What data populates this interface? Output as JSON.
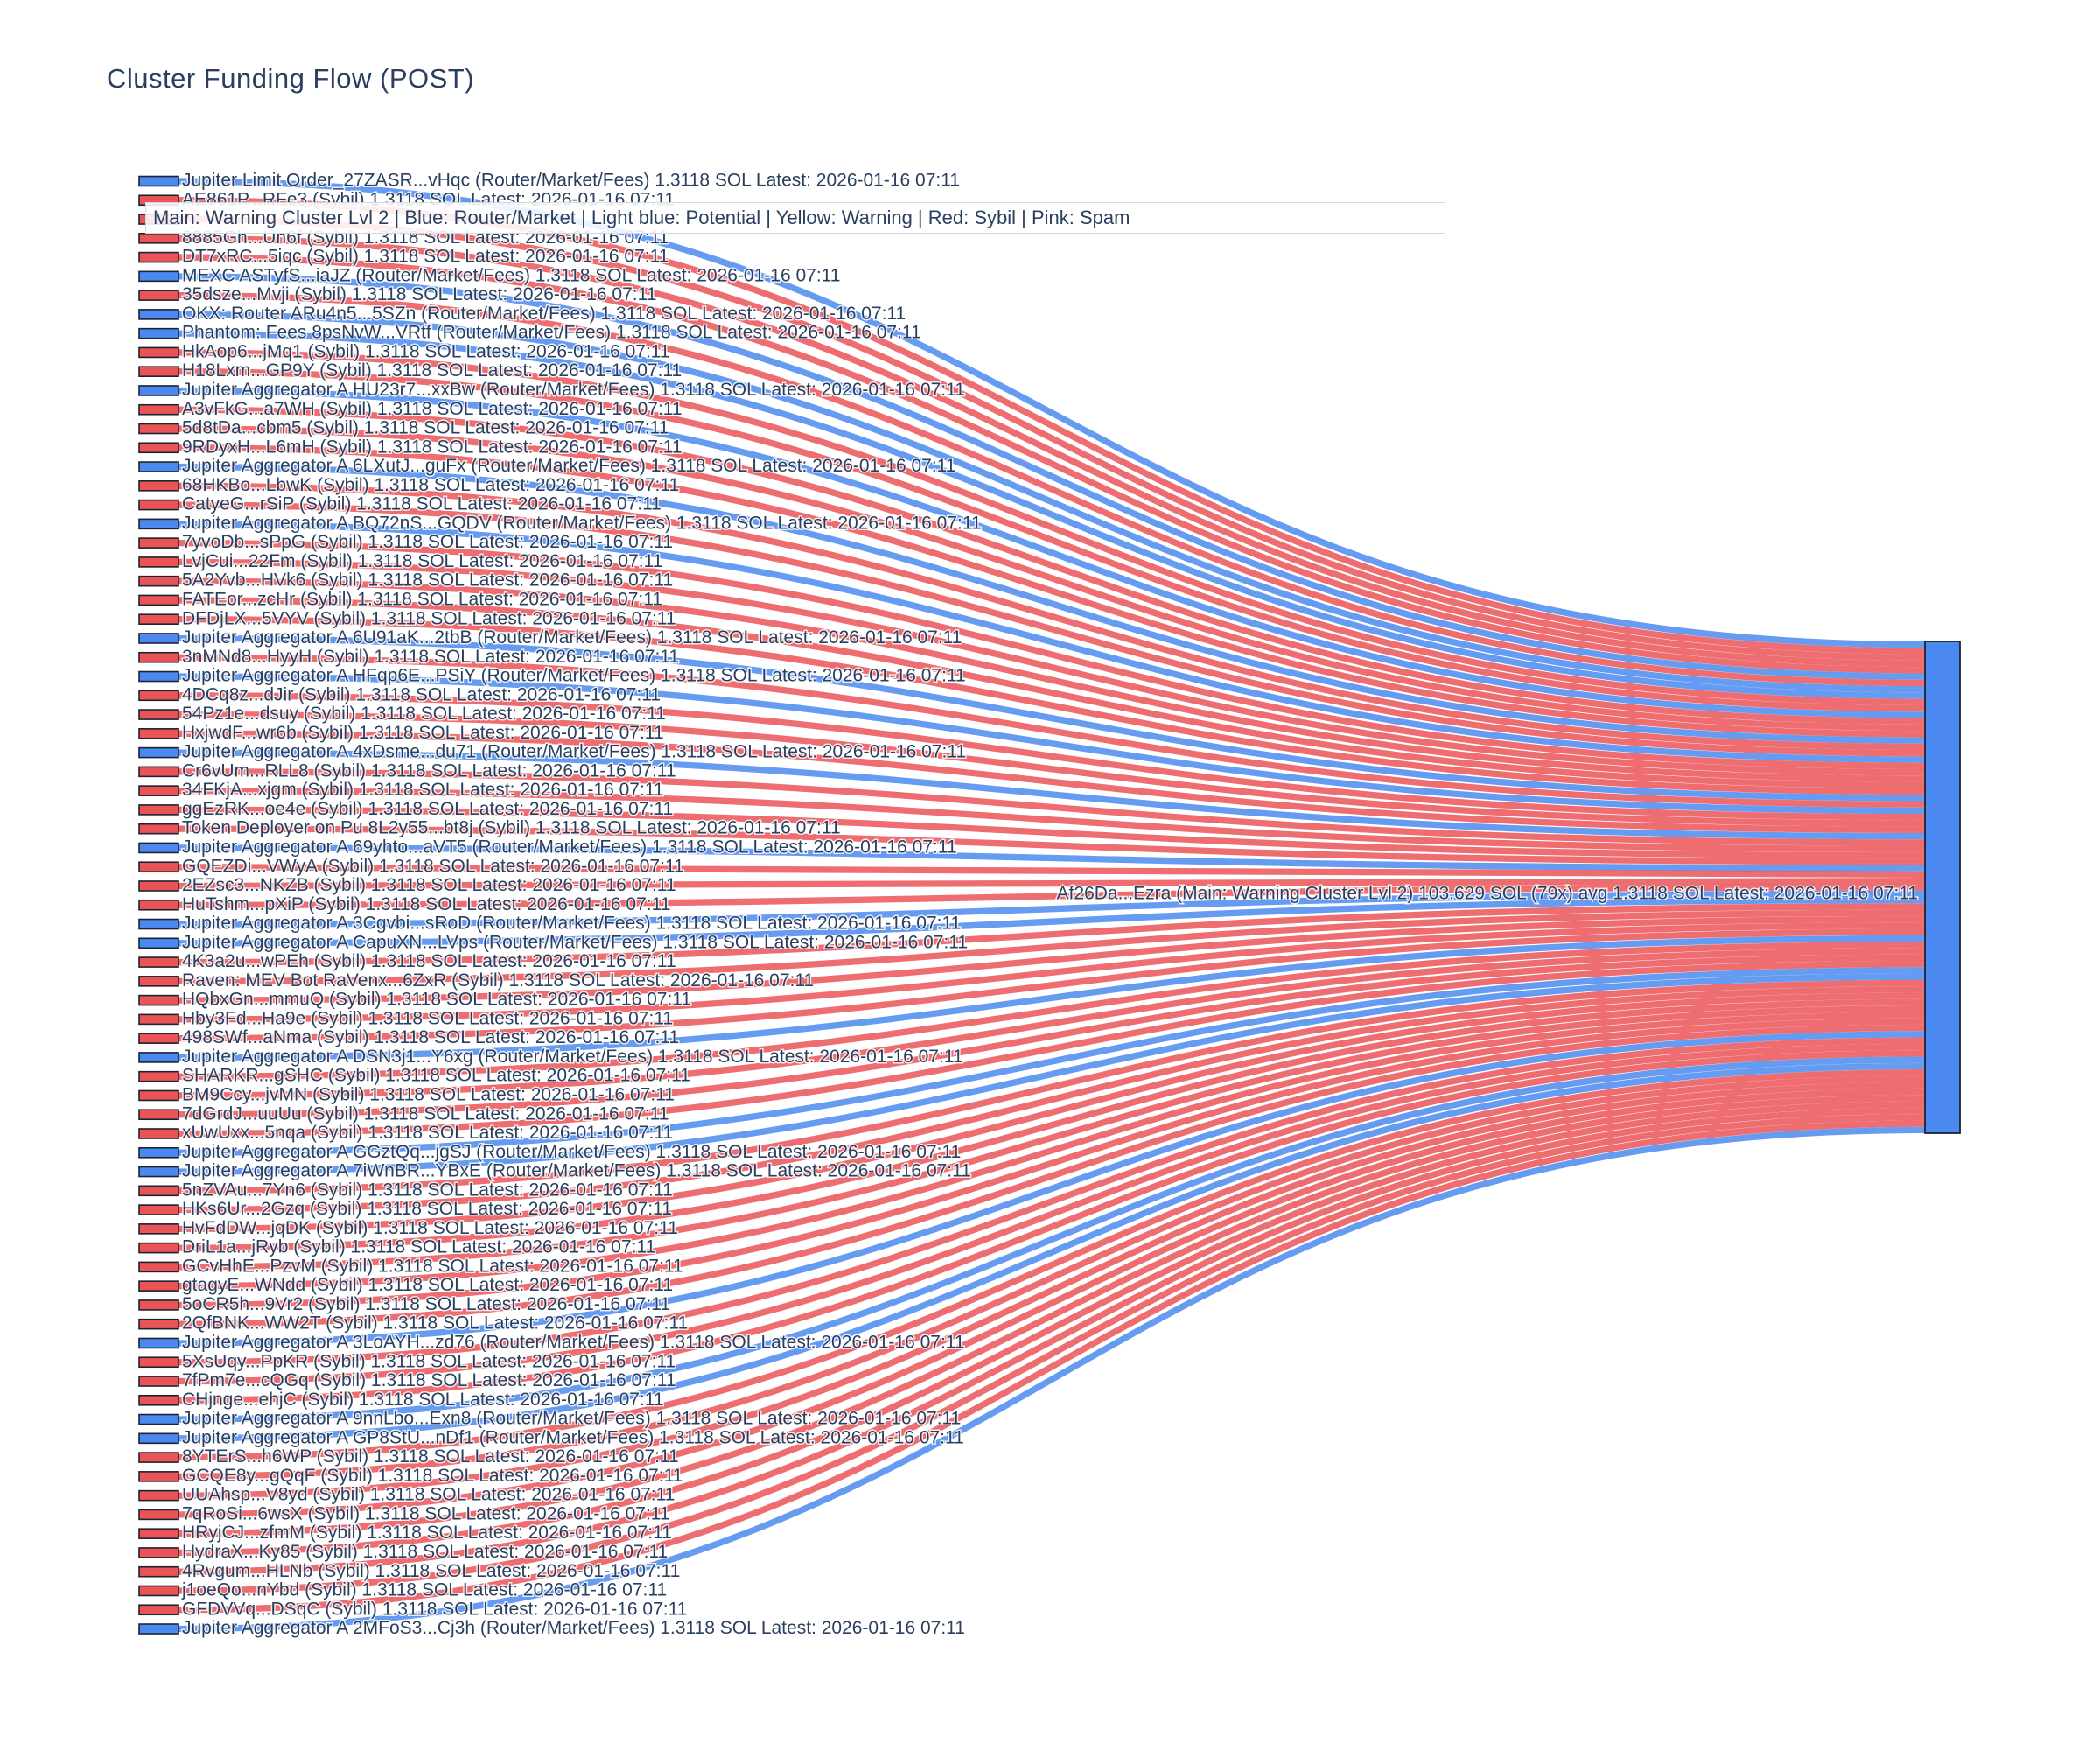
{
  "title": "Cluster Funding Flow (POST)",
  "legend": {
    "text": "Main: Warning Cluster Lvl 2  | Blue: Router/Market | Light blue: Potential | Yellow: Warning | Red: Sybil | Pink: Spam"
  },
  "colors": {
    "router_market_blue": "#4b89f0",
    "sybil_red": "#ea5457",
    "text_dark": "#2a3f5f",
    "node_border": "#1c2430"
  },
  "chart_data": {
    "type": "sankey",
    "title": "Cluster Funding Flow (POST)",
    "legend_note": "Main: Warning Cluster Lvl 2  | Blue: Router/Market | Light blue: Potential | Yellow: Warning | Red: Sybil | Pink: Spam",
    "flow_value_sol": 1.3118,
    "latest": "2026-01-16 07:11",
    "target_node": {
      "label": "Af26Da...Ezra (Main: Warning Cluster Lvl 2) 103.629 SOL (79x) avg 1.3118 SOL Latest: 2026-01-16 07:11",
      "total_sol": 103.629,
      "link_count": 79,
      "avg_sol": 1.3118
    },
    "sources": [
      {
        "label": "Jupiter Limit Order_27ZASR...vHqc (Router/Market/Fees) 1.3118 SOL Latest: 2026-01-16 07:11",
        "category": "router"
      },
      {
        "label": "AE861P...RFe3 (Sybil) 1.3118 SOL Latest: 2026-01-16 07:11",
        "category": "sybil"
      },
      {
        "label": "",
        "category": "sybil",
        "occluded": true
      },
      {
        "label": "8885Gh...Un6f (Sybil) 1.3118 SOL Latest: 2026-01-16 07:11",
        "category": "sybil"
      },
      {
        "label": "DT7xRC...5iqc (Sybil) 1.3118 SOL Latest: 2026-01-16 07:11",
        "category": "sybil"
      },
      {
        "label": "MEXC ASTyfS...iaJZ (Router/Market/Fees) 1.3118 SOL Latest: 2026-01-16 07:11",
        "category": "router"
      },
      {
        "label": "35dsze...Mvji (Sybil) 1.3118 SOL Latest: 2026-01-16 07:11",
        "category": "sybil"
      },
      {
        "label": "OKX: Router ARu4n5...5SZn (Router/Market/Fees) 1.3118 SOL Latest: 2026-01-16 07:11",
        "category": "router"
      },
      {
        "label": "Phantom: Fees 8psNvW...VRtf (Router/Market/Fees) 1.3118 SOL Latest: 2026-01-16 07:11",
        "category": "router"
      },
      {
        "label": "HkAop6...jMq1 (Sybil) 1.3118 SOL Latest: 2026-01-16 07:11",
        "category": "sybil"
      },
      {
        "label": "H18Lxm...GP9Y (Sybil) 1.3118 SOL Latest: 2026-01-16 07:11",
        "category": "sybil"
      },
      {
        "label": "Jupiter Aggregator A HU23r7...xxBw (Router/Market/Fees) 1.3118 SOL Latest: 2026-01-16 07:11",
        "category": "router"
      },
      {
        "label": "A3vFkG...a7WH (Sybil) 1.3118 SOL Latest: 2026-01-16 07:11",
        "category": "sybil"
      },
      {
        "label": "5d8tDa...cbm5 (Sybil) 1.3118 SOL Latest: 2026-01-16 07:11",
        "category": "sybil"
      },
      {
        "label": "9RDyxH...L6mH (Sybil) 1.3118 SOL Latest: 2026-01-16 07:11",
        "category": "sybil"
      },
      {
        "label": "Jupiter Aggregator A 6LXutJ...guFx (Router/Market/Fees) 1.3118 SOL Latest: 2026-01-16 07:11",
        "category": "router"
      },
      {
        "label": "68HKBo...LbwK (Sybil) 1.3118 SOL Latest: 2026-01-16 07:11",
        "category": "sybil"
      },
      {
        "label": "CatyeG...rSiP (Sybil) 1.3118 SOL Latest: 2026-01-16 07:11",
        "category": "sybil"
      },
      {
        "label": "Jupiter Aggregator A BQ72nS...GQDV (Router/Market/Fees) 1.3118 SOL Latest: 2026-01-16 07:11",
        "category": "router"
      },
      {
        "label": "7yvoDb...sPpG (Sybil) 1.3118 SOL Latest: 2026-01-16 07:11",
        "category": "sybil"
      },
      {
        "label": "LvjCui...22Fm (Sybil) 1.3118 SOL Latest: 2026-01-16 07:11",
        "category": "sybil"
      },
      {
        "label": "5A2Yvb...HVk6 (Sybil) 1.3118 SOL Latest: 2026-01-16 07:11",
        "category": "sybil"
      },
      {
        "label": "FATEor...zcHr (Sybil) 1.3118 SOL Latest: 2026-01-16 07:11",
        "category": "sybil"
      },
      {
        "label": "DFDjLX...5VYV (Sybil) 1.3118 SOL Latest: 2026-01-16 07:11",
        "category": "sybil"
      },
      {
        "label": "Jupiter Aggregator A 6U91aK...2tbB (Router/Market/Fees) 1.3118 SOL Latest: 2026-01-16 07:11",
        "category": "router"
      },
      {
        "label": "3nMNd8...HyyH (Sybil) 1.3118 SOL Latest: 2026-01-16 07:11",
        "category": "sybil"
      },
      {
        "label": "Jupiter Aggregator A HFqp6E...PSiY (Router/Market/Fees) 1.3118 SOL Latest: 2026-01-16 07:11",
        "category": "router"
      },
      {
        "label": "4DCq8z...dJir (Sybil) 1.3118 SOL Latest: 2026-01-16 07:11",
        "category": "sybil"
      },
      {
        "label": "54Pz1e...dsuy (Sybil) 1.3118 SOL Latest: 2026-01-16 07:11",
        "category": "sybil"
      },
      {
        "label": "HxjwdF...wr6b (Sybil) 1.3118 SOL Latest: 2026-01-16 07:11",
        "category": "sybil"
      },
      {
        "label": "Jupiter Aggregator A 4xDsme...du71 (Router/Market/Fees) 1.3118 SOL Latest: 2026-01-16 07:11",
        "category": "router"
      },
      {
        "label": "Cr6vUm...RLL8 (Sybil) 1.3118 SOL Latest: 2026-01-16 07:11",
        "category": "sybil"
      },
      {
        "label": "34FKjA...xjgm (Sybil) 1.3118 SOL Latest: 2026-01-16 07:11",
        "category": "sybil"
      },
      {
        "label": "ggEzRK...oe4e (Sybil) 1.3118 SOL Latest: 2026-01-16 07:11",
        "category": "sybil"
      },
      {
        "label": "Token Deployer on Pu 8L2y55...bt8j (Sybil) 1.3118 SOL Latest: 2026-01-16 07:11",
        "category": "sybil"
      },
      {
        "label": "Jupiter Aggregator A 69yhto...aVT5 (Router/Market/Fees) 1.3118 SOL Latest: 2026-01-16 07:11",
        "category": "router"
      },
      {
        "label": "GQEZDi...VWyA (Sybil) 1.3118 SOL Latest: 2026-01-16 07:11",
        "category": "sybil"
      },
      {
        "label": "2EZsc3...NKZB (Sybil) 1.3118 SOL Latest: 2026-01-16 07:11",
        "category": "sybil"
      },
      {
        "label": "HuTshm...pXiP (Sybil) 1.3118 SOL Latest: 2026-01-16 07:11",
        "category": "sybil"
      },
      {
        "label": "Jupiter Aggregator A 3Cgvbi...sRoD (Router/Market/Fees) 1.3118 SOL Latest: 2026-01-16 07:11",
        "category": "router"
      },
      {
        "label": "Jupiter Aggregator A CapuXN...LVps (Router/Market/Fees) 1.3118 SOL Latest: 2026-01-16 07:11",
        "category": "router"
      },
      {
        "label": "4K3a2u...wPEh (Sybil) 1.3118 SOL Latest: 2026-01-16 07:11",
        "category": "sybil"
      },
      {
        "label": "Raven: MEV Bot RaVenx...6ZxR (Sybil) 1.3118 SOL Latest: 2026-01-16 07:11",
        "category": "sybil"
      },
      {
        "label": "HQbxGn...mmuQ (Sybil) 1.3118 SOL Latest: 2026-01-16 07:11",
        "category": "sybil"
      },
      {
        "label": "Hby3Fd...Ha9e (Sybil) 1.3118 SOL Latest: 2026-01-16 07:11",
        "category": "sybil"
      },
      {
        "label": "498SWf...aNma (Sybil) 1.3118 SOL Latest: 2026-01-16 07:11",
        "category": "sybil"
      },
      {
        "label": "Jupiter Aggregator A DSN3j1...Y6xg (Router/Market/Fees) 1.3118 SOL Latest: 2026-01-16 07:11",
        "category": "router"
      },
      {
        "label": "SHARKR...gSHC (Sybil) 1.3118 SOL Latest: 2026-01-16 07:11",
        "category": "sybil"
      },
      {
        "label": "BM9Ccy...jvMN (Sybil) 1.3118 SOL Latest: 2026-01-16 07:11",
        "category": "sybil"
      },
      {
        "label": "7dGrdJ...uuUu (Sybil) 1.3118 SOL Latest: 2026-01-16 07:11",
        "category": "sybil"
      },
      {
        "label": "xUwUxx...5nqa (Sybil) 1.3118 SOL Latest: 2026-01-16 07:11",
        "category": "sybil"
      },
      {
        "label": "Jupiter Aggregator A GGztQq...jgSJ (Router/Market/Fees) 1.3118 SOL Latest: 2026-01-16 07:11",
        "category": "router"
      },
      {
        "label": "Jupiter Aggregator A 7iWnBR...YBxE (Router/Market/Fees) 1.3118 SOL Latest: 2026-01-16 07:11",
        "category": "router"
      },
      {
        "label": "5nZVAu...7Yn6 (Sybil) 1.3118 SOL Latest: 2026-01-16 07:11",
        "category": "sybil"
      },
      {
        "label": "HKs6Ur...2Gzq (Sybil) 1.3118 SOL Latest: 2026-01-16 07:11",
        "category": "sybil"
      },
      {
        "label": "HvFdDW...jqDK (Sybil) 1.3118 SOL Latest: 2026-01-16 07:11",
        "category": "sybil"
      },
      {
        "label": "DriL1a...jRyb (Sybil) 1.3118 SOL Latest: 2026-01-16 07:11",
        "category": "sybil"
      },
      {
        "label": "GCvHhE...PzvM (Sybil) 1.3118 SOL Latest: 2026-01-16 07:11",
        "category": "sybil"
      },
      {
        "label": "gtagyE...WNdd (Sybil) 1.3118 SOL Latest: 2026-01-16 07:11",
        "category": "sybil"
      },
      {
        "label": "5oCR5h...9Vr2 (Sybil) 1.3118 SOL Latest: 2026-01-16 07:11",
        "category": "sybil"
      },
      {
        "label": "2QfBNK...WW2T (Sybil) 1.3118 SOL Latest: 2026-01-16 07:11",
        "category": "sybil"
      },
      {
        "label": "Jupiter Aggregator A 3LoAYH...zd76 (Router/Market/Fees) 1.3118 SOL Latest: 2026-01-16 07:11",
        "category": "router"
      },
      {
        "label": "5XsUqy...PpKR (Sybil) 1.3118 SOL Latest: 2026-01-16 07:11",
        "category": "sybil"
      },
      {
        "label": "7fPm7e...cQGq (Sybil) 1.3118 SOL Latest: 2026-01-16 07:11",
        "category": "sybil"
      },
      {
        "label": "CHjnge...ehjC (Sybil) 1.3118 SOL Latest: 2026-01-16 07:11",
        "category": "sybil"
      },
      {
        "label": "Jupiter Aggregator A 9nnLbo...Exn8 (Router/Market/Fees) 1.3118 SOL Latest: 2026-01-16 07:11",
        "category": "router"
      },
      {
        "label": "Jupiter Aggregator A GP8StU...nDf1 (Router/Market/Fees) 1.3118 SOL Latest: 2026-01-16 07:11",
        "category": "router"
      },
      {
        "label": "8YTErS...h6WP (Sybil) 1.3118 SOL Latest: 2026-01-16 07:11",
        "category": "sybil"
      },
      {
        "label": "GCQE8y...gQqF (Sybil) 1.3118 SOL Latest: 2026-01-16 07:11",
        "category": "sybil"
      },
      {
        "label": "UUAhsp...V8yd (Sybil) 1.3118 SOL Latest: 2026-01-16 07:11",
        "category": "sybil"
      },
      {
        "label": "7qRoSi...6wsX (Sybil) 1.3118 SOL Latest: 2026-01-16 07:11",
        "category": "sybil"
      },
      {
        "label": "HRyjCJ...zfmM (Sybil) 1.3118 SOL Latest: 2026-01-16 07:11",
        "category": "sybil"
      },
      {
        "label": "HydraX...Ky85 (Sybil) 1.3118 SOL Latest: 2026-01-16 07:11",
        "category": "sybil"
      },
      {
        "label": "4Rvgum...HLNb (Sybil) 1.3118 SOL Latest: 2026-01-16 07:11",
        "category": "sybil"
      },
      {
        "label": "j1oeQo...nYbd (Sybil) 1.3118 SOL Latest: 2026-01-16 07:11",
        "category": "sybil"
      },
      {
        "label": "GFDVVq...DSqC (Sybil) 1.3118 SOL Latest: 2026-01-16 07:11",
        "category": "sybil"
      },
      {
        "label": "Jupiter Aggregator A 2MFoS3...Cj3h (Router/Market/Fees) 1.3118 SOL Latest: 2026-01-16 07:11",
        "category": "router"
      }
    ]
  }
}
